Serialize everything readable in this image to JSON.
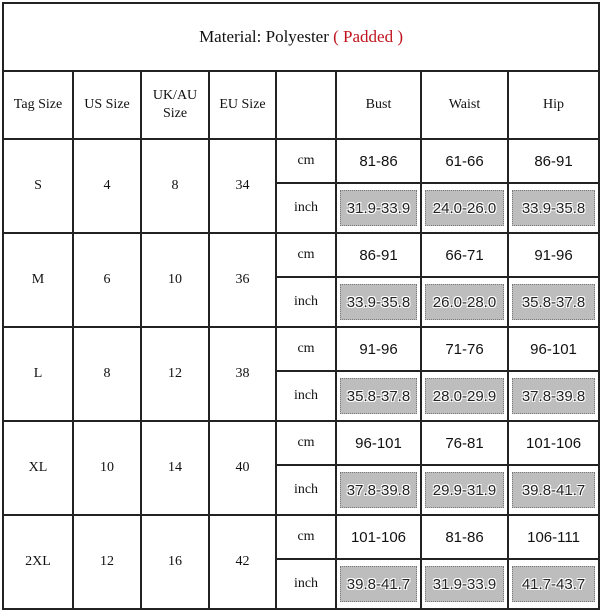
{
  "title": {
    "prefix": "Material: Polyester",
    "highlight": "( Padded )",
    "highlight_color": "#c0141c"
  },
  "headers": [
    "Tag Size",
    "US Size",
    "UK/AU Size",
    "EU Size",
    "",
    "Bust",
    "Waist",
    "Hip"
  ],
  "units": [
    "cm",
    "inch"
  ],
  "rows": [
    {
      "tag": "S",
      "us": "4",
      "uk": "8",
      "eu": "34",
      "cm": [
        "81-86",
        "61-66",
        "86-91"
      ],
      "inch": [
        "31.9-33.9",
        "24.0-26.0",
        "33.9-35.8"
      ]
    },
    {
      "tag": "M",
      "us": "6",
      "uk": "10",
      "eu": "36",
      "cm": [
        "86-91",
        "66-71",
        "91-96"
      ],
      "inch": [
        "33.9-35.8",
        "26.0-28.0",
        "35.8-37.8"
      ]
    },
    {
      "tag": "L",
      "us": "8",
      "uk": "12",
      "eu": "38",
      "cm": [
        "91-96",
        "71-76",
        "96-101"
      ],
      "inch": [
        "35.8-37.8",
        "28.0-29.9",
        "37.8-39.8"
      ]
    },
    {
      "tag": "XL",
      "us": "10",
      "uk": "14",
      "eu": "40",
      "cm": [
        "96-101",
        "76-81",
        "101-106"
      ],
      "inch": [
        "37.8-39.8",
        "29.9-31.9",
        "39.8-41.7"
      ]
    },
    {
      "tag": "2XL",
      "us": "12",
      "uk": "16",
      "eu": "42",
      "cm": [
        "101-106",
        "81-86",
        "106-111"
      ],
      "inch": [
        "39.8-41.7",
        "31.9-33.9",
        "41.7-43.7"
      ]
    }
  ]
}
